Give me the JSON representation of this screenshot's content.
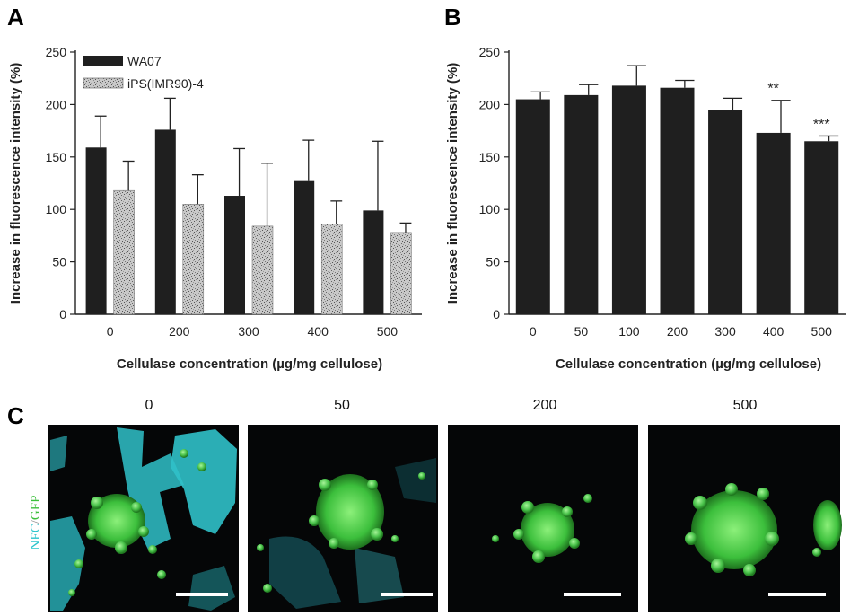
{
  "panels": {
    "a": "A",
    "b": "B",
    "c": "C"
  },
  "chart_data": [
    {
      "type": "bar",
      "title": "",
      "xlabel": "Cellulase concentration (µg/mg cellulose)",
      "ylabel": "Increase in fluorescence intensity (%)",
      "ylim": [
        0,
        250
      ],
      "yticks": [
        0,
        50,
        100,
        150,
        200,
        250
      ],
      "categories": [
        "0",
        "200",
        "300",
        "400",
        "500"
      ],
      "legend_position": "top-left",
      "series": [
        {
          "name": "WA07",
          "color": "#1f1f1f",
          "pattern": "solid",
          "values": [
            159,
            176,
            113,
            127,
            99
          ],
          "errors": [
            30,
            30,
            45,
            39,
            66
          ]
        },
        {
          "name": "iPS(IMR90)-4",
          "color": "#b5b5b5",
          "pattern": "speckled",
          "values": [
            118,
            105,
            84,
            86,
            78
          ],
          "errors": [
            28,
            28,
            60,
            22,
            9
          ]
        }
      ]
    },
    {
      "type": "bar",
      "title": "",
      "xlabel": "Cellulase concentration (µg/mg cellulose)",
      "ylabel": "Increase in fluorescence intensity (%)",
      "ylim": [
        0,
        250
      ],
      "yticks": [
        0,
        50,
        100,
        150,
        200,
        250
      ],
      "categories": [
        "0",
        "50",
        "100",
        "200",
        "300",
        "400",
        "500"
      ],
      "series": [
        {
          "color": "#1f1f1f",
          "values": [
            205,
            209,
            218,
            216,
            195,
            173,
            165
          ],
          "errors": [
            7,
            10,
            19,
            7,
            11,
            31,
            5
          ]
        }
      ],
      "annotations": [
        "",
        "",
        "",
        "",
        "",
        "**",
        "***"
      ]
    }
  ],
  "micrographs": {
    "channel_label": {
      "part1": "NFC",
      "separator": "/",
      "part2": "GFP"
    },
    "colors": {
      "nfc": "#2cc4cc",
      "gfp": "#3cbf3c"
    },
    "images": [
      {
        "title": "0"
      },
      {
        "title": "50"
      },
      {
        "title": "200"
      },
      {
        "title": "500"
      }
    ]
  }
}
